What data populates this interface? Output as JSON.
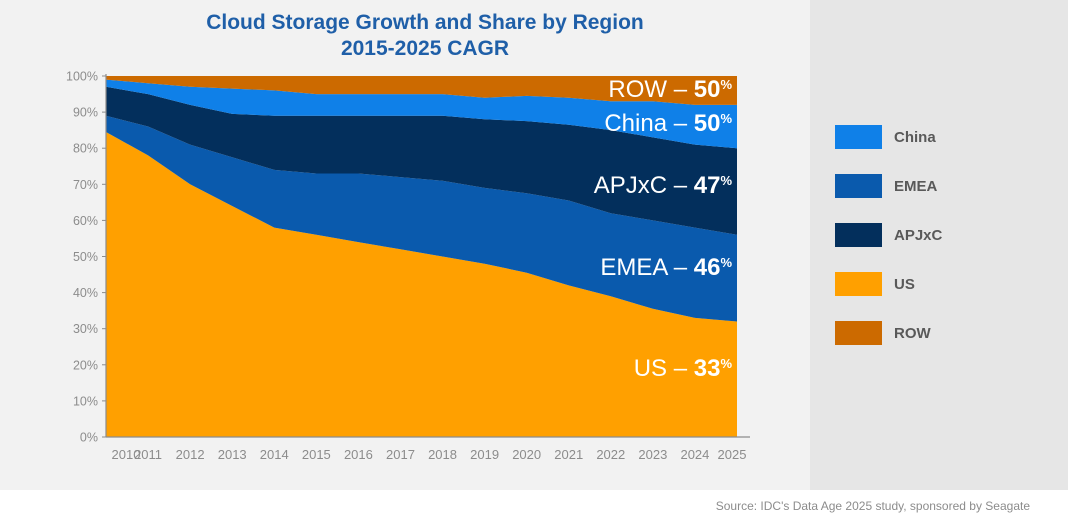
{
  "chart_data": {
    "type": "area",
    "stacked": true,
    "normalized_percent": true,
    "title": "Cloud Storage Growth and Share by Region",
    "subtitle": "2015-2025 CAGR",
    "x": [
      "2010",
      "2011",
      "2012",
      "2013",
      "2014",
      "2015",
      "2016",
      "2017",
      "2018",
      "2019",
      "2020",
      "2021",
      "2022",
      "2023",
      "2024",
      "2025"
    ],
    "y_ticks": [
      "0%",
      "10%",
      "20%",
      "30%",
      "40%",
      "50%",
      "60%",
      "70%",
      "80%",
      "90%",
      "100%"
    ],
    "ylim": [
      0,
      100
    ],
    "grid": false,
    "legend_position": "right",
    "series": [
      {
        "name": "US",
        "color": "#ffa000",
        "values": [
          84.5,
          78,
          70,
          64,
          58,
          56,
          54,
          52,
          50,
          48,
          45.5,
          42,
          39,
          35.5,
          33,
          32
        ]
      },
      {
        "name": "EMEA",
        "color": "#0a5aad",
        "values": [
          4.5,
          8,
          11,
          13.5,
          16,
          17,
          19,
          20,
          21,
          21,
          22,
          23.5,
          23,
          24.5,
          25,
          24
        ]
      },
      {
        "name": "APJxC",
        "color": "#032f5c",
        "values": [
          8,
          9,
          11,
          12,
          15,
          16,
          16,
          17,
          18,
          19,
          20,
          21,
          23,
          23,
          23,
          24
        ]
      },
      {
        "name": "China",
        "color": "#0f80e8",
        "values": [
          2,
          3,
          5,
          7,
          7,
          6,
          6,
          6,
          6,
          6,
          7,
          7.5,
          8,
          10,
          11,
          12
        ]
      },
      {
        "name": "ROW",
        "color": "#cc6a00",
        "values": [
          1,
          2,
          3,
          3.5,
          4,
          5,
          5,
          5,
          5,
          6,
          5.5,
          6,
          7,
          7,
          8,
          8
        ]
      }
    ],
    "annotations": [
      {
        "region": "ROW",
        "prefix": "ROW – ",
        "value": "50",
        "unit": "%"
      },
      {
        "region": "China",
        "prefix": "China – ",
        "value": "50",
        "unit": "%"
      },
      {
        "region": "APJxC",
        "prefix": "APJxC – ",
        "value": "47",
        "unit": "%"
      },
      {
        "region": "EMEA",
        "prefix": "EMEA – ",
        "value": "46",
        "unit": "%"
      },
      {
        "region": "US",
        "prefix": "US – ",
        "value": "33",
        "unit": "%"
      }
    ],
    "legend": [
      {
        "label": "China",
        "color": "#0f80e8"
      },
      {
        "label": "EMEA",
        "color": "#0a5aad"
      },
      {
        "label": "APJxC",
        "color": "#032f5c"
      },
      {
        "label": "US",
        "color": "#ffa000"
      },
      {
        "label": "ROW",
        "color": "#cc6a00"
      }
    ]
  },
  "source": "Source: IDC's Data Age 2025 study, sponsored by Seagate"
}
